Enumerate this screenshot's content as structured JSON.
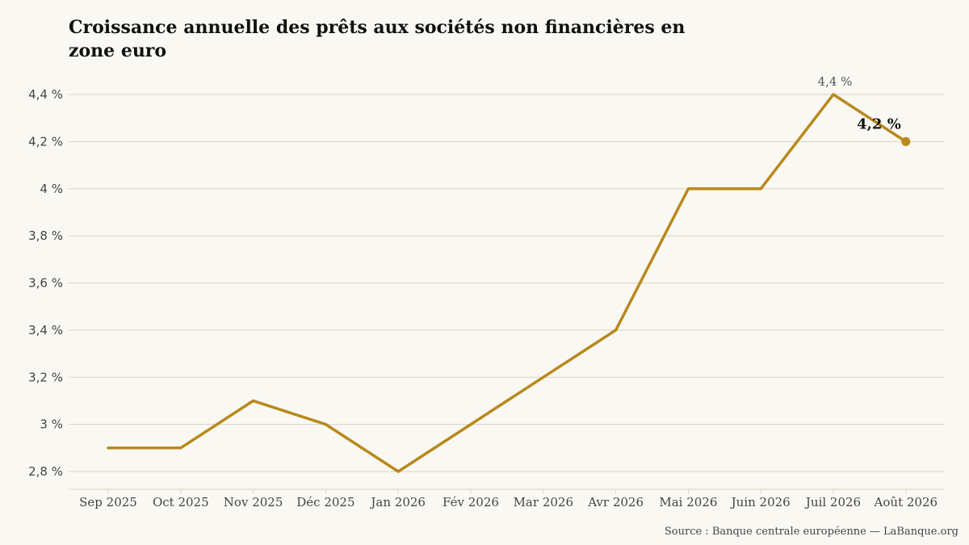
{
  "title": "Croissance annuelle des prêts aux sociétés non financières en zone euro",
  "source": "Source : Banque centrale européenne — LaBanque.org",
  "colors": {
    "line": "#b8891c",
    "grid": "#d9d2c3",
    "background": "#faf8f2"
  },
  "chart_data": {
    "type": "line",
    "categories": [
      "Sep 2025",
      "Oct 2025",
      "Nov 2025",
      "Déc 2025",
      "Jan 2026",
      "Fév 2026",
      "Mar 2026",
      "Avr 2026",
      "Mai 2026",
      "Juin 2026",
      "Juil 2026",
      "Août 2026"
    ],
    "values": [
      2.9,
      2.9,
      3.1,
      3.0,
      2.8,
      3.0,
      3.2,
      3.4,
      4.0,
      4.0,
      4.4,
      4.2
    ],
    "y_ticks": [
      2.8,
      3.0,
      3.2,
      3.4,
      3.6,
      3.8,
      4.0,
      4.2,
      4.4
    ],
    "y_tick_labels": [
      "2,8 %",
      "3 %",
      "3,2 %",
      "3,4 %",
      "3,6 %",
      "3,8 %",
      "4 %",
      "4,2 %",
      "4,4 %"
    ],
    "ylim": [
      2.8,
      4.4
    ],
    "grid": "horizontal",
    "annotations": [
      {
        "category": "Juil 2026",
        "value": 4.4,
        "text": "4,4 %",
        "style": "peak"
      },
      {
        "category": "Août 2026",
        "value": 4.2,
        "text": "4,2 %",
        "style": "last"
      }
    ]
  }
}
